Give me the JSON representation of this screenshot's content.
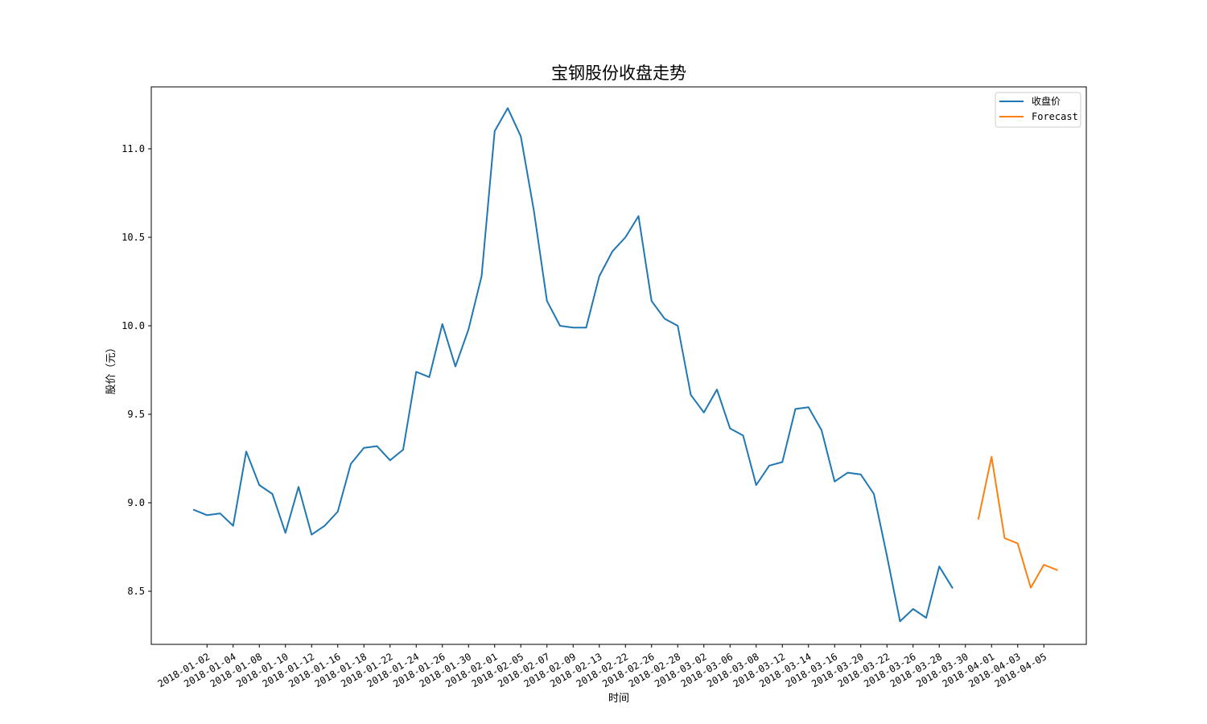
{
  "chart_data": {
    "type": "line",
    "title": "宝钢股份收盘走势",
    "xlabel": "时间",
    "ylabel": "股价（元）",
    "ylim": [
      8.2,
      11.35
    ],
    "y_ticks": [
      8.5,
      9.0,
      9.5,
      10.0,
      10.5,
      11.0
    ],
    "y_tick_labels": [
      "8.5",
      "9.0",
      "9.5",
      "10.0",
      "10.5",
      "11.0"
    ],
    "x_tick_labels": [
      "2018-01-02",
      "2018-01-04",
      "2018-01-08",
      "2018-01-10",
      "2018-01-12",
      "2018-01-16",
      "2018-01-18",
      "2018-01-22",
      "2018-01-24",
      "2018-01-26",
      "2018-01-30",
      "2018-02-01",
      "2018-02-05",
      "2018-02-07",
      "2018-02-09",
      "2018-02-13",
      "2018-02-22",
      "2018-02-26",
      "2018-02-28",
      "2018-03-02",
      "2018-03-06",
      "2018-03-08",
      "2018-03-12",
      "2018-03-14",
      "2018-03-16",
      "2018-03-20",
      "2018-03-22",
      "2018-03-26",
      "2018-03-28",
      "2018-03-30",
      "2018-04-01",
      "2018-04-03",
      "2018-04-05"
    ],
    "grid": false,
    "legend": "top-right",
    "series": [
      {
        "name": "收盘价",
        "color": "#1f77b4",
        "values": [
          8.96,
          8.93,
          8.94,
          8.87,
          9.29,
          9.1,
          9.05,
          8.83,
          9.09,
          8.82,
          8.87,
          8.95,
          9.22,
          9.31,
          9.32,
          9.24,
          9.3,
          9.74,
          9.71,
          10.01,
          9.77,
          9.98,
          10.28,
          11.1,
          11.23,
          11.07,
          10.65,
          10.14,
          10.0,
          9.99,
          9.99,
          10.28,
          10.42,
          10.5,
          10.62,
          10.14,
          10.04,
          10.0,
          9.61,
          9.51,
          9.64,
          9.42,
          9.38,
          9.1,
          9.21,
          9.23,
          9.53,
          9.54,
          9.41,
          9.12,
          9.17,
          9.16,
          9.05,
          8.7,
          8.33,
          8.4,
          8.35,
          8.64,
          8.52
        ]
      },
      {
        "name": "Forecast",
        "color": "#ff7f0e",
        "start_index": 60,
        "values": [
          8.91,
          9.26,
          8.8,
          8.77,
          8.52,
          8.65,
          8.62
        ]
      }
    ]
  }
}
